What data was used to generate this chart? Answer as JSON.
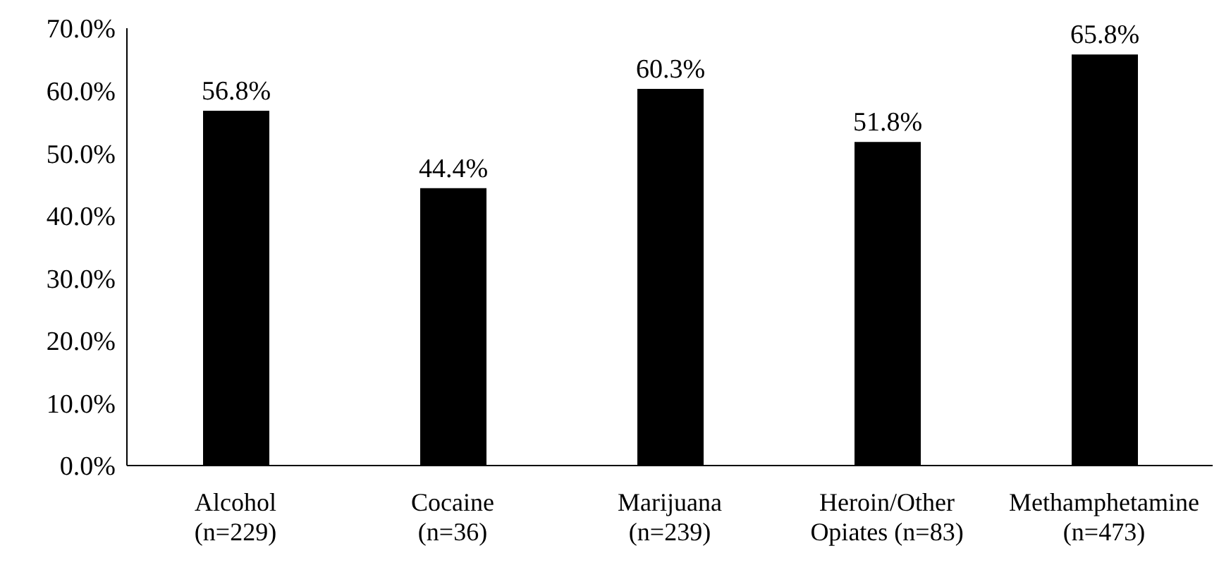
{
  "chart_data": {
    "type": "bar",
    "categories": [
      "Alcohol\n(n=229)",
      "Cocaine\n(n=36)",
      "Marijuana\n(n=239)",
      "Heroin/Other\nOpiates (n=83)",
      "Methamphetamine\n(n=473)"
    ],
    "values": [
      56.8,
      44.4,
      60.3,
      51.8,
      65.8
    ],
    "value_labels": [
      "56.8%",
      "44.4%",
      "60.3%",
      "51.8%",
      "65.8%"
    ],
    "color": "#000000",
    "ylim": [
      0,
      70
    ],
    "yticks": [
      {
        "value": 0,
        "label": "0.0%"
      },
      {
        "value": 10,
        "label": "10.0%"
      },
      {
        "value": 20,
        "label": "20.0%"
      },
      {
        "value": 30,
        "label": "30.0%"
      },
      {
        "value": 40,
        "label": "40.0%"
      },
      {
        "value": 50,
        "label": "50.0%"
      },
      {
        "value": 60,
        "label": "60.0%"
      },
      {
        "value": 70,
        "label": "70.0%"
      }
    ],
    "grid": false,
    "legend": false
  }
}
